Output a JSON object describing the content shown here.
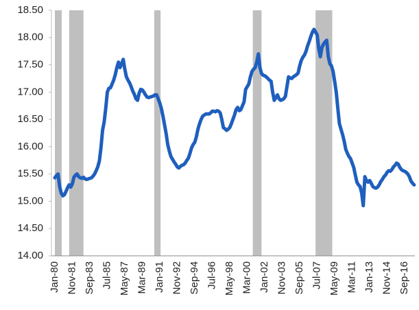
{
  "chart_data": {
    "type": "line",
    "color": "#1f5fbd",
    "ylim": [
      14,
      18.5
    ],
    "yticks": [
      {
        "value": 14,
        "label": "14.00"
      },
      {
        "value": 14.5,
        "label": "14.50"
      },
      {
        "value": 15,
        "label": "15.00"
      },
      {
        "value": 15.5,
        "label": "15.50"
      },
      {
        "value": 16,
        "label": "16.00"
      },
      {
        "value": 16.5,
        "label": "16.50"
      },
      {
        "value": 17,
        "label": "17.00"
      },
      {
        "value": 17.5,
        "label": "17.50"
      },
      {
        "value": 18,
        "label": "18.00"
      },
      {
        "value": 18.5,
        "label": "18.50"
      }
    ],
    "shading": [
      [
        0,
        4.3
      ],
      [
        9,
        18
      ],
      [
        62.5,
        66.5
      ],
      [
        124.5,
        130
      ],
      [
        164,
        174.5
      ]
    ],
    "shading_color": "#bfbfbf",
    "categories": [
      "Jan-80",
      null,
      null,
      null,
      null,
      null,
      null,
      null,
      null,
      null,
      null,
      "Nov-81",
      null,
      null,
      null,
      null,
      null,
      null,
      null,
      null,
      null,
      null,
      "Sep-83",
      null,
      null,
      null,
      null,
      null,
      null,
      null,
      null,
      null,
      null,
      "Jul-85",
      null,
      null,
      null,
      null,
      null,
      null,
      null,
      null,
      null,
      null,
      "May-87",
      null,
      null,
      null,
      null,
      null,
      null,
      null,
      null,
      null,
      null,
      "Mar-89",
      null,
      null,
      null,
      null,
      null,
      null,
      null,
      null,
      null,
      null,
      "Jan-91",
      null,
      null,
      null,
      null,
      null,
      null,
      null,
      null,
      null,
      null,
      "Nov-92",
      null,
      null,
      null,
      null,
      null,
      null,
      null,
      null,
      null,
      null,
      "Sep-94",
      null,
      null,
      null,
      null,
      null,
      null,
      null,
      null,
      null,
      null,
      "Jul-96",
      null,
      null,
      null,
      null,
      null,
      null,
      null,
      null,
      null,
      null,
      "May-98",
      null,
      null,
      null,
      null,
      null,
      null,
      null,
      null,
      null,
      null,
      "Mar-00",
      null,
      null,
      null,
      null,
      null,
      null,
      null,
      null,
      null,
      null,
      "Jan-02",
      null,
      null,
      null,
      null,
      null,
      null,
      null,
      null,
      null,
      null,
      "Nov-03",
      null,
      null,
      null,
      null,
      null,
      null,
      null,
      null,
      null,
      null,
      "Sep-05",
      null,
      null,
      null,
      null,
      null,
      null,
      null,
      null,
      null,
      null,
      "Jul-07",
      null,
      null,
      null,
      null,
      null,
      null,
      null,
      null,
      null,
      null,
      "May-09",
      null,
      null,
      null,
      null,
      null,
      null,
      null,
      null,
      null,
      null,
      "Mar-11",
      null,
      null,
      null,
      null,
      null,
      null,
      null,
      null,
      null,
      null,
      "Jan-13",
      null,
      null,
      null,
      null,
      null,
      null,
      null,
      null,
      null,
      null,
      "Nov-14",
      null,
      null,
      null,
      null,
      null,
      null,
      null,
      null,
      null,
      null,
      "Sep-16",
      null,
      null,
      null,
      null,
      null,
      null
    ],
    "values": [
      15.43,
      15.47,
      15.5,
      15.27,
      15.15,
      15.1,
      15.12,
      15.18,
      15.25,
      15.3,
      15.26,
      15.32,
      15.44,
      15.48,
      15.5,
      15.45,
      15.43,
      15.42,
      15.44,
      15.41,
      15.4,
      15.41,
      15.42,
      15.43,
      15.46,
      15.5,
      15.56,
      15.63,
      15.74,
      15.98,
      16.3,
      16.45,
      16.7,
      17.0,
      17.07,
      17.08,
      17.15,
      17.22,
      17.32,
      17.45,
      17.55,
      17.45,
      17.52,
      17.6,
      17.42,
      17.28,
      17.22,
      17.17,
      17.1,
      17.02,
      16.96,
      16.88,
      16.85,
      16.98,
      17.05,
      17.04,
      17.0,
      16.95,
      16.91,
      16.9,
      16.91,
      16.92,
      16.93,
      16.95,
      16.95,
      16.88,
      16.8,
      16.7,
      16.56,
      16.4,
      16.24,
      16.04,
      15.92,
      15.82,
      15.77,
      15.72,
      15.68,
      15.63,
      15.61,
      15.64,
      15.66,
      15.67,
      15.7,
      15.75,
      15.79,
      15.88,
      15.98,
      16.04,
      16.08,
      16.18,
      16.32,
      16.42,
      16.5,
      16.56,
      16.58,
      16.6,
      16.6,
      16.6,
      16.62,
      16.65,
      16.65,
      16.64,
      16.66,
      16.65,
      16.62,
      16.5,
      16.35,
      16.33,
      16.3,
      16.32,
      16.35,
      16.42,
      16.5,
      16.58,
      16.68,
      16.72,
      16.66,
      16.68,
      16.75,
      16.82,
      17.05,
      17.1,
      17.15,
      17.28,
      17.38,
      17.42,
      17.45,
      17.55,
      17.7,
      17.45,
      17.34,
      17.31,
      17.3,
      17.28,
      17.25,
      17.22,
      17.2,
      17.0,
      16.85,
      16.9,
      16.95,
      16.88,
      16.85,
      16.86,
      16.88,
      16.92,
      17.1,
      17.28,
      17.26,
      17.25,
      17.28,
      17.3,
      17.32,
      17.35,
      17.48,
      17.58,
      17.64,
      17.68,
      17.75,
      17.85,
      17.93,
      18.02,
      18.1,
      18.15,
      18.1,
      18.05,
      17.8,
      17.65,
      17.82,
      17.88,
      17.92,
      17.95,
      17.65,
      17.52,
      17.48,
      17.38,
      17.2,
      17.0,
      16.7,
      16.42,
      16.32,
      16.22,
      16.1,
      15.95,
      15.88,
      15.82,
      15.78,
      15.7,
      15.62,
      15.48,
      15.35,
      15.3,
      15.27,
      15.15,
      14.92,
      15.45,
      15.38,
      15.35,
      15.38,
      15.33,
      15.27,
      15.25,
      15.24,
      15.26,
      15.3,
      15.36,
      15.4,
      15.45,
      15.48,
      15.53,
      15.56,
      15.55,
      15.58,
      15.63,
      15.66,
      15.7,
      15.68,
      15.62,
      15.58,
      15.56,
      15.55,
      15.53,
      15.5,
      15.45,
      15.37,
      15.33,
      15.3
    ]
  }
}
